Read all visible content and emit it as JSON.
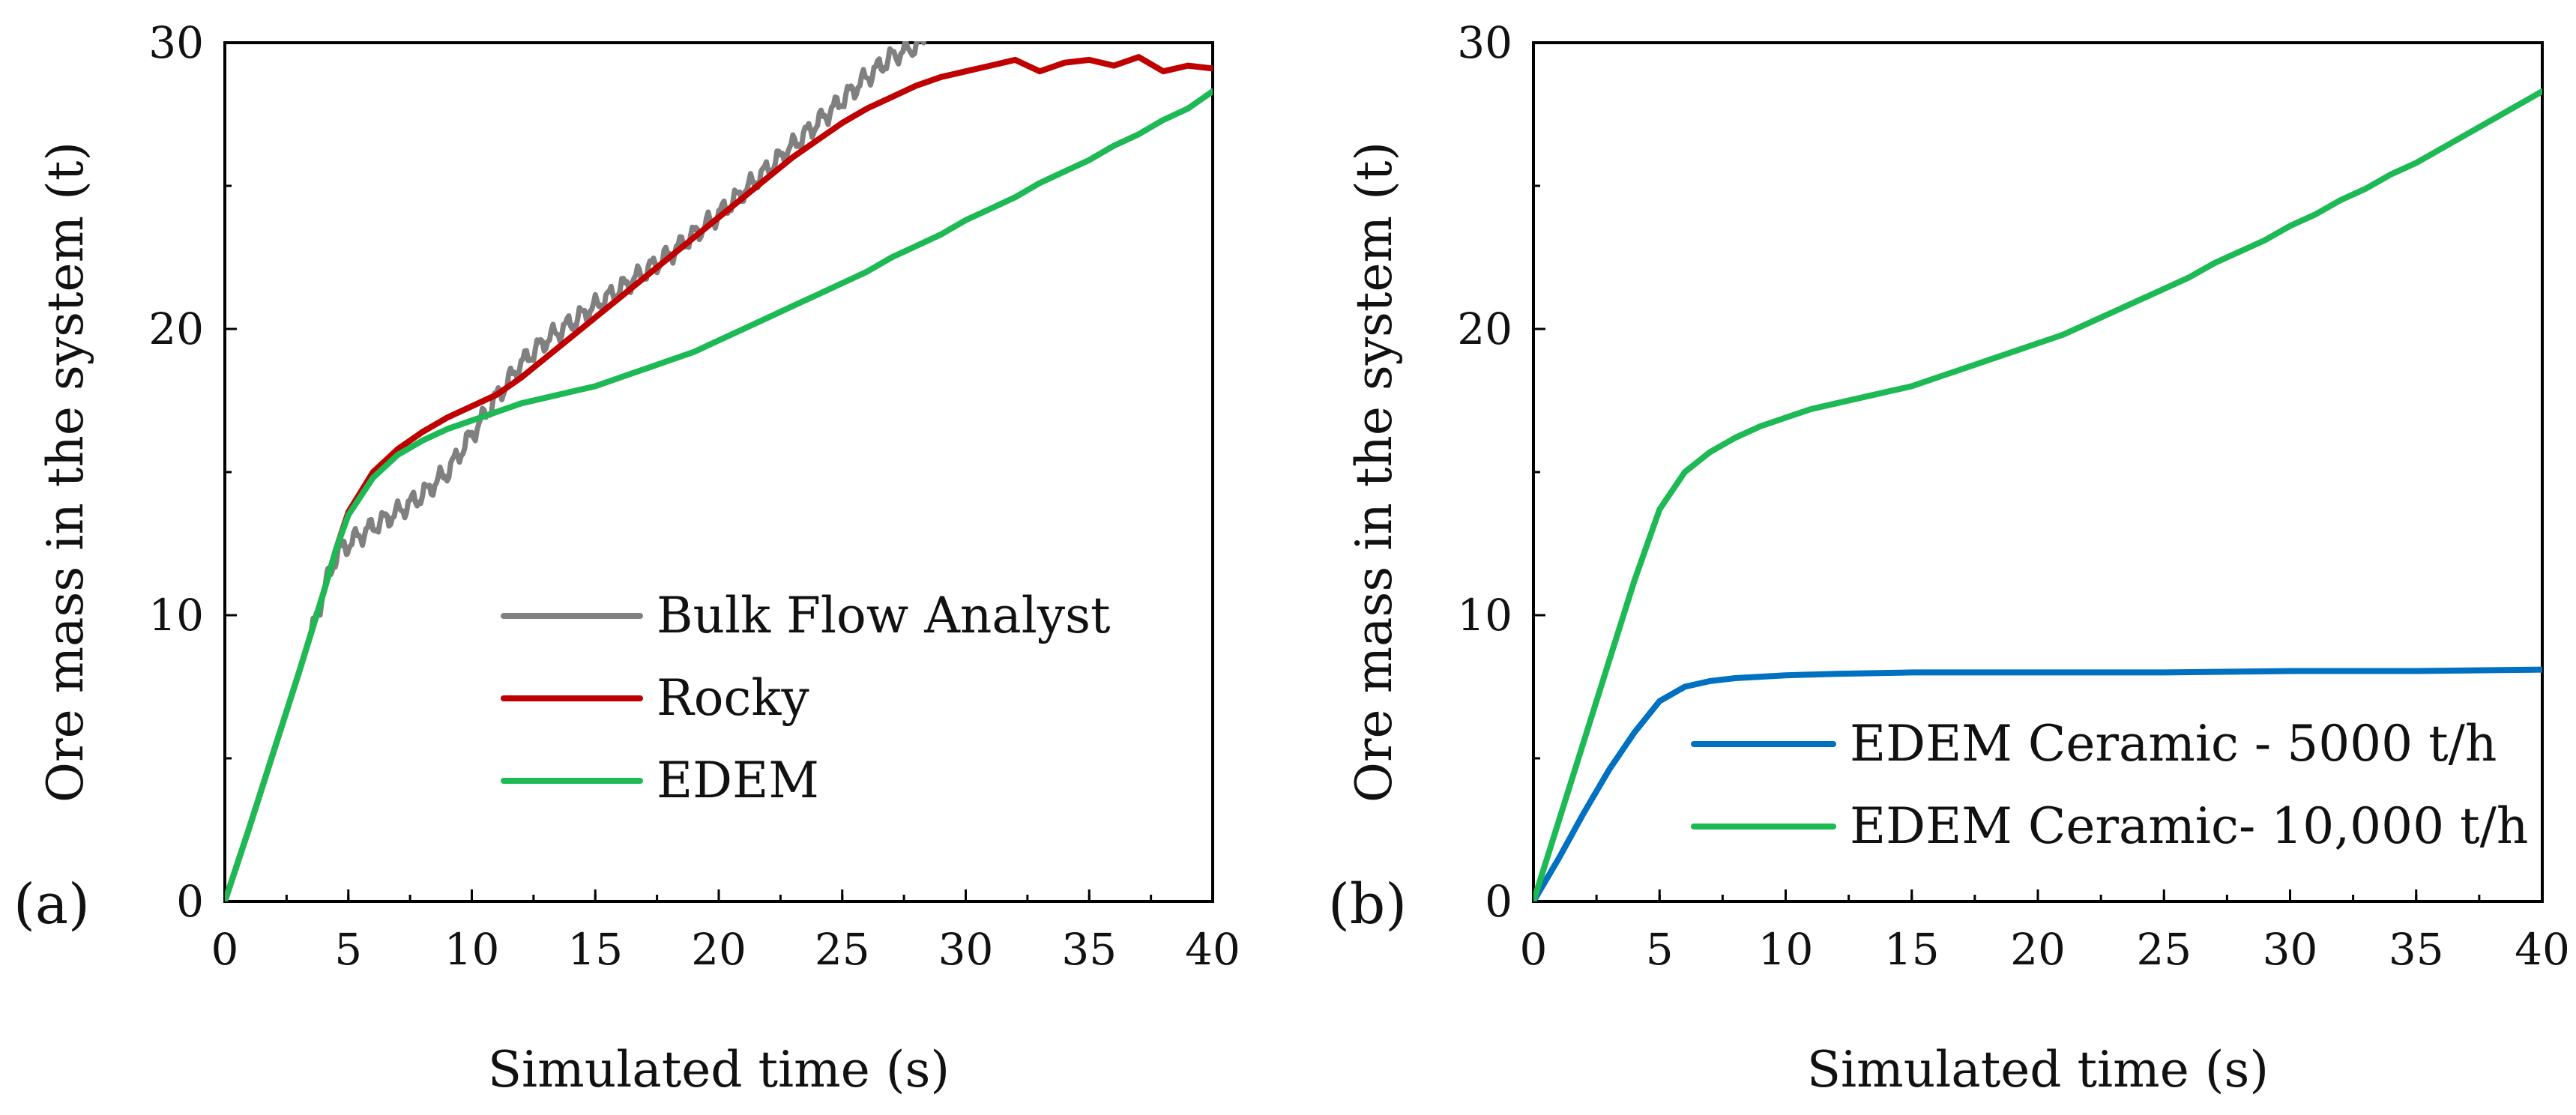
{
  "chart_data": [
    {
      "type": "line",
      "panel_label": "(a)",
      "xlabel": "Simulated time (s)",
      "ylabel": "Ore mass in the system (t)",
      "xlim": [
        0,
        40
      ],
      "ylim": [
        0,
        30
      ],
      "x_ticks": [
        0,
        5,
        10,
        15,
        20,
        25,
        30,
        35,
        40
      ],
      "y_ticks": [
        0,
        10,
        20,
        30
      ],
      "legend_position": "bottom-right",
      "series": [
        {
          "name": "Bulk Flow Analyst",
          "color": "#808080",
          "noisy": true,
          "x": [
            0,
            1,
            2,
            3,
            4,
            4.5,
            5,
            6,
            7,
            8,
            9,
            10,
            11,
            12,
            13,
            14,
            15,
            16,
            17,
            18,
            19,
            20,
            21,
            22,
            23,
            24,
            25,
            26,
            27,
            28.3
          ],
          "y": [
            0,
            2.6,
            5.3,
            8.0,
            10.8,
            12.1,
            12.5,
            13.1,
            13.6,
            14.2,
            15.0,
            16.3,
            17.6,
            18.8,
            19.6,
            20.2,
            20.8,
            21.4,
            22.0,
            22.6,
            23.3,
            24.0,
            24.8,
            25.6,
            26.4,
            27.2,
            28.0,
            28.8,
            29.5,
            30.0
          ]
        },
        {
          "name": "Rocky",
          "color": "#c00000",
          "noisy": false,
          "x": [
            0,
            1,
            2,
            3,
            4,
            4.5,
            5,
            6,
            7,
            8,
            9,
            10,
            11,
            12,
            13,
            14,
            15,
            16,
            17,
            18,
            19,
            20,
            21,
            22,
            23,
            24,
            25,
            26,
            27,
            28,
            29,
            30,
            31,
            32,
            33,
            34,
            35,
            36,
            37,
            38,
            39,
            40
          ],
          "y": [
            0,
            2.6,
            5.3,
            8.0,
            10.8,
            12.3,
            13.6,
            15.0,
            15.8,
            16.4,
            16.9,
            17.3,
            17.7,
            18.3,
            19.0,
            19.7,
            20.4,
            21.1,
            21.8,
            22.5,
            23.2,
            23.9,
            24.6,
            25.3,
            26.0,
            26.6,
            27.2,
            27.7,
            28.1,
            28.5,
            28.8,
            29.0,
            29.2,
            29.4,
            29.0,
            29.3,
            29.4,
            29.2,
            29.5,
            29.0,
            29.2,
            29.1
          ]
        },
        {
          "name": "EDEM",
          "color": "#1db954",
          "noisy": false,
          "x": [
            0,
            1,
            2,
            3,
            4,
            4.5,
            5,
            6,
            7,
            8,
            9,
            10,
            11,
            12,
            13,
            14,
            15,
            16,
            17,
            18,
            19,
            20,
            21,
            22,
            23,
            24,
            25,
            26,
            27,
            28,
            29,
            30,
            31,
            32,
            33,
            34,
            35,
            36,
            37,
            38,
            39,
            40
          ],
          "y": [
            0,
            2.6,
            5.3,
            8.0,
            10.8,
            12.3,
            13.5,
            14.8,
            15.6,
            16.1,
            16.5,
            16.8,
            17.1,
            17.4,
            17.6,
            17.8,
            18.0,
            18.3,
            18.6,
            18.9,
            19.2,
            19.6,
            20.0,
            20.4,
            20.8,
            21.2,
            21.6,
            22.0,
            22.5,
            22.9,
            23.3,
            23.8,
            24.2,
            24.6,
            25.1,
            25.5,
            25.9,
            26.4,
            26.8,
            27.3,
            27.7,
            28.3
          ]
        }
      ]
    },
    {
      "type": "line",
      "panel_label": "(b)",
      "xlabel": "Simulated time (s)",
      "ylabel": "Ore mass in the system (t)",
      "xlim": [
        0,
        40
      ],
      "ylim": [
        0,
        30
      ],
      "x_ticks": [
        0,
        5,
        10,
        15,
        20,
        25,
        30,
        35,
        40
      ],
      "y_ticks": [
        0,
        10,
        20,
        30
      ],
      "legend_position": "bottom-right",
      "series": [
        {
          "name": "EDEM Ceramic - 5000 t/h",
          "color": "#0070c0",
          "noisy": false,
          "x": [
            0,
            1,
            2,
            3,
            4,
            5,
            6,
            7,
            8,
            9,
            10,
            12,
            15,
            20,
            25,
            30,
            35,
            40
          ],
          "y": [
            0,
            1.5,
            3.1,
            4.6,
            5.9,
            7.0,
            7.5,
            7.7,
            7.8,
            7.85,
            7.9,
            7.95,
            8.0,
            8.0,
            8.0,
            8.05,
            8.05,
            8.1
          ]
        },
        {
          "name": "EDEM Ceramic- 10,000 t/h",
          "color": "#1db954",
          "noisy": false,
          "x": [
            0,
            1,
            2,
            3,
            4,
            5,
            6,
            7,
            8,
            9,
            10,
            11,
            12,
            13,
            14,
            15,
            16,
            17,
            18,
            19,
            20,
            21,
            22,
            23,
            24,
            25,
            26,
            27,
            28,
            29,
            30,
            31,
            32,
            33,
            34,
            35,
            36,
            37,
            38,
            39,
            40
          ],
          "y": [
            0,
            2.8,
            5.6,
            8.4,
            11.2,
            13.7,
            15.0,
            15.7,
            16.2,
            16.6,
            16.9,
            17.2,
            17.4,
            17.6,
            17.8,
            18.0,
            18.3,
            18.6,
            18.9,
            19.2,
            19.5,
            19.8,
            20.2,
            20.6,
            21.0,
            21.4,
            21.8,
            22.3,
            22.7,
            23.1,
            23.6,
            24.0,
            24.5,
            24.9,
            25.4,
            25.8,
            26.3,
            26.8,
            27.3,
            27.8,
            28.3
          ]
        }
      ]
    }
  ]
}
